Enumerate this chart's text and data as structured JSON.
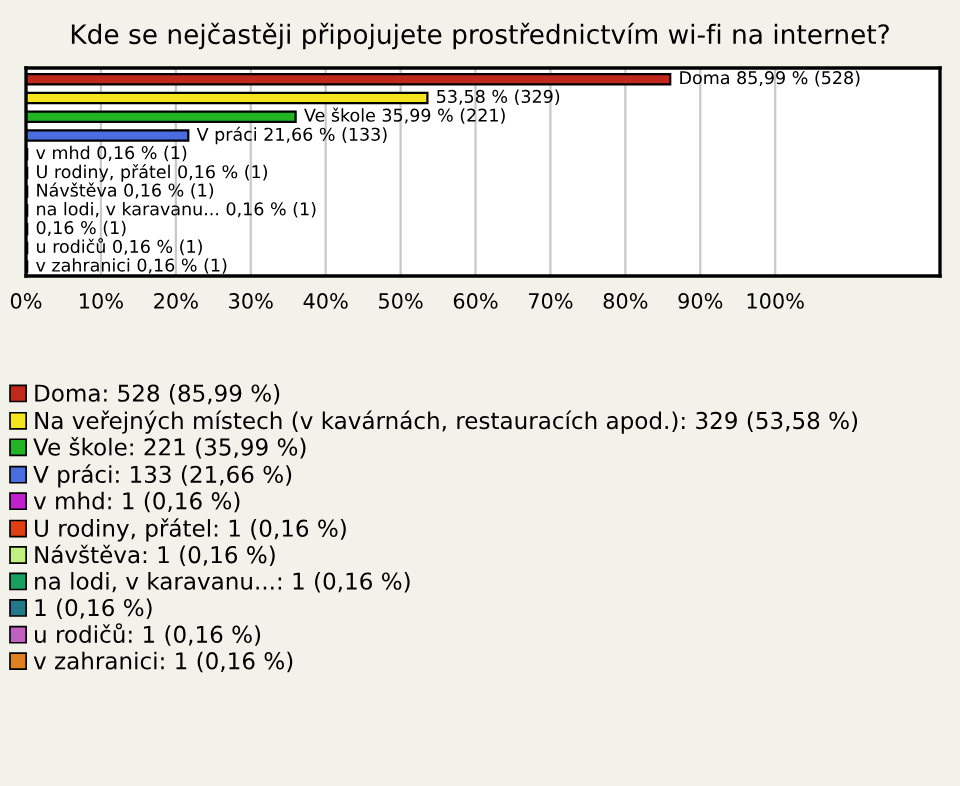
{
  "chart_data": {
    "type": "bar",
    "orientation": "horizontal",
    "title": "Kde se nejčastěji připojujete prostřednictvím wi-fi na internet?",
    "categories": [
      null,
      null,
      null,
      null,
      null,
      null,
      null,
      null,
      null,
      null,
      null
    ],
    "series": [
      {
        "name": "Doma: 528 (85,99 %)",
        "color": "#c0281c",
        "values": [
          85.99,
          null,
          null,
          null,
          null,
          null,
          null,
          null,
          null,
          null,
          null
        ],
        "value_labels": [
          "Doma 85,99 % (528)",
          null,
          null,
          null,
          null,
          null,
          null,
          null,
          null,
          null,
          null
        ]
      },
      {
        "name": "Na veřejných místech (v kavárnách, restauracích apod.): 329 (53,58 %)",
        "color": "#f5e51e",
        "values": [
          null,
          53.58,
          null,
          null,
          null,
          null,
          null,
          null,
          null,
          null,
          null
        ],
        "value_labels": [
          null,
          "53,58 % (329)",
          null,
          null,
          null,
          null,
          null,
          null,
          null,
          null,
          null
        ]
      },
      {
        "name": "Ve škole: 221 (35,99 %)",
        "color": "#22b422",
        "values": [
          null,
          null,
          35.99,
          null,
          null,
          null,
          null,
          null,
          null,
          null,
          null
        ],
        "value_labels": [
          null,
          null,
          "Ve škole 35,99 % (221)",
          null,
          null,
          null,
          null,
          null,
          null,
          null,
          null
        ]
      },
      {
        "name": "V práci: 133 (21,66 %)",
        "color": "#4a6ee0",
        "values": [
          null,
          null,
          null,
          21.66,
          null,
          null,
          null,
          null,
          null,
          null,
          null
        ],
        "value_labels": [
          null,
          null,
          null,
          "V práci 21,66 % (133)",
          null,
          null,
          null,
          null,
          null,
          null,
          null
        ]
      },
      {
        "name": "v mhd: 1 (0,16 %)",
        "color": "#c020d0",
        "values": [
          null,
          null,
          null,
          null,
          0.16,
          null,
          null,
          null,
          null,
          null,
          null
        ],
        "value_labels": [
          null,
          null,
          null,
          null,
          "v mhd 0,16 % (1)",
          null,
          null,
          null,
          null,
          null,
          null
        ]
      },
      {
        "name": "U rodiny, přátel: 1 (0,16 %)",
        "color": "#e04010",
        "values": [
          null,
          null,
          null,
          null,
          null,
          0.16,
          null,
          null,
          null,
          null,
          null
        ],
        "value_labels": [
          null,
          null,
          null,
          null,
          null,
          "U rodiny, přátel 0,16 % (1)",
          null,
          null,
          null,
          null,
          null
        ]
      },
      {
        "name": "Návštěva: 1 (0,16 %)",
        "color": "#c0f080",
        "values": [
          null,
          null,
          null,
          null,
          null,
          null,
          0.16,
          null,
          null,
          null,
          null
        ],
        "value_labels": [
          null,
          null,
          null,
          null,
          null,
          null,
          "Návštěva 0,16 % (1)",
          null,
          null,
          null,
          null
        ]
      },
      {
        "name": "na lodi, v karavanu...: 1 (0,16 %)",
        "color": "#18a060",
        "values": [
          null,
          null,
          null,
          null,
          null,
          null,
          null,
          0.16,
          null,
          null,
          null
        ],
        "value_labels": [
          null,
          null,
          null,
          null,
          null,
          null,
          null,
          "na lodi, v karavanu... 0,16 % (1)",
          null,
          null,
          null
        ]
      },
      {
        "name": "1 (0,16 %)",
        "color": "#207888",
        "values": [
          null,
          null,
          null,
          null,
          null,
          null,
          null,
          null,
          0.16,
          null,
          null
        ],
        "value_labels": [
          null,
          null,
          null,
          null,
          null,
          null,
          null,
          null,
          "0,16 % (1)",
          null,
          null
        ]
      },
      {
        "name": "u rodičů: 1 (0,16 %)",
        "color": "#c060c0",
        "values": [
          null,
          null,
          null,
          null,
          null,
          null,
          null,
          null,
          null,
          0.16,
          null
        ],
        "value_labels": [
          null,
          null,
          null,
          null,
          null,
          null,
          null,
          null,
          null,
          "u rodičů 0,16 % (1)",
          null
        ]
      },
      {
        "name": "v zahranici: 1 (0,16 %)",
        "color": "#e08020",
        "values": [
          null,
          null,
          null,
          null,
          null,
          null,
          null,
          null,
          null,
          null,
          0.16
        ],
        "value_labels": [
          null,
          null,
          null,
          null,
          null,
          null,
          null,
          null,
          null,
          null,
          "v zahranici 0,16 % (1)"
        ]
      }
    ],
    "xlim": [
      0,
      122
    ],
    "xticks": [
      {
        "value": 0,
        "label": "0%"
      },
      {
        "value": 10,
        "label": "10%"
      },
      {
        "value": 20,
        "label": "20%"
      },
      {
        "value": 30,
        "label": "30%"
      },
      {
        "value": 40,
        "label": "40%"
      },
      {
        "value": 50,
        "label": "50%"
      },
      {
        "value": 60,
        "label": "60%"
      },
      {
        "value": 70,
        "label": "70%"
      },
      {
        "value": 80,
        "label": "80%"
      },
      {
        "value": 90,
        "label": "90%"
      },
      {
        "value": 100,
        "label": "100%"
      }
    ],
    "grid": "x",
    "legend": "bottom",
    "tick_labels": "x"
  }
}
